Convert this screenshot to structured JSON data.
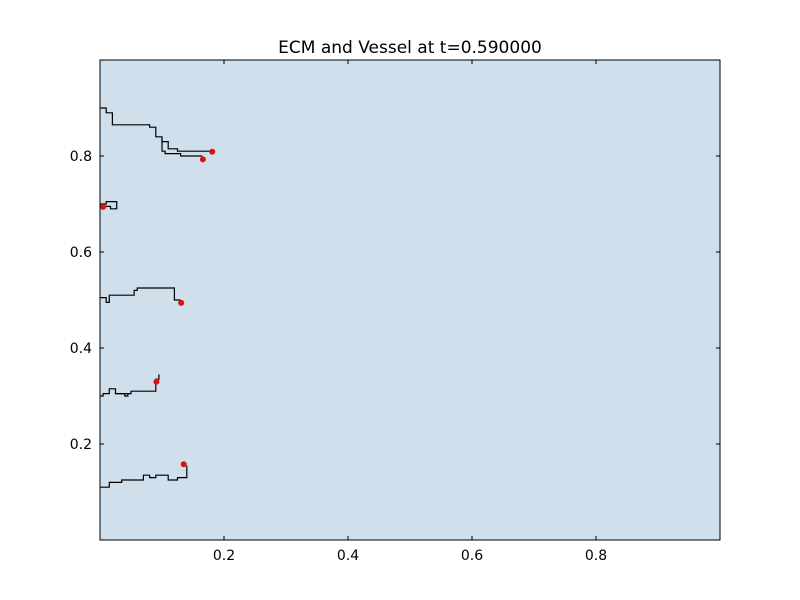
{
  "chart_data": {
    "type": "line",
    "title": "ECM and Vessel at t=0.590000",
    "xlabel": "",
    "ylabel": "",
    "xlim": [
      0.0,
      1.0
    ],
    "ylim": [
      0.0,
      1.0
    ],
    "x_ticks": [
      {
        "value": 0.2,
        "label": "0.2"
      },
      {
        "value": 0.4,
        "label": "0.4"
      },
      {
        "value": 0.6,
        "label": "0.6"
      },
      {
        "value": 0.8,
        "label": "0.8"
      }
    ],
    "y_ticks": [
      {
        "value": 0.2,
        "label": "0.2"
      },
      {
        "value": 0.4,
        "label": "0.4"
      },
      {
        "value": 0.6,
        "label": "0.6"
      },
      {
        "value": 0.8,
        "label": "0.8"
      }
    ],
    "grid": false,
    "background_color": "#cfdfec",
    "vessel_color": "#000000",
    "tip_color": "#e01010",
    "vessels": [
      {
        "points": [
          [
            0.0,
            0.9
          ],
          [
            0.01,
            0.9
          ],
          [
            0.01,
            0.89
          ],
          [
            0.02,
            0.89
          ],
          [
            0.02,
            0.865
          ],
          [
            0.08,
            0.865
          ],
          [
            0.08,
            0.86
          ],
          [
            0.09,
            0.86
          ],
          [
            0.09,
            0.84
          ],
          [
            0.1,
            0.84
          ],
          [
            0.1,
            0.83
          ],
          [
            0.11,
            0.83
          ],
          [
            0.11,
            0.815
          ],
          [
            0.125,
            0.815
          ],
          [
            0.125,
            0.81
          ],
          [
            0.18,
            0.81
          ]
        ],
        "tip": [
          0.181,
          0.809
        ]
      },
      {
        "points": [
          [
            0.1,
            0.835
          ],
          [
            0.1,
            0.81
          ],
          [
            0.105,
            0.81
          ],
          [
            0.105,
            0.805
          ],
          [
            0.13,
            0.805
          ],
          [
            0.13,
            0.8
          ],
          [
            0.165,
            0.8
          ]
        ],
        "tip": [
          0.166,
          0.793
        ]
      },
      {
        "points": [
          [
            0.0,
            0.7
          ],
          [
            0.01,
            0.7
          ],
          [
            0.01,
            0.705
          ],
          [
            0.027,
            0.705
          ],
          [
            0.027,
            0.69
          ],
          [
            0.017,
            0.69
          ],
          [
            0.017,
            0.695
          ],
          [
            0.0,
            0.695
          ]
        ],
        "tip": [
          0.005,
          0.694
        ]
      },
      {
        "points": [
          [
            0.0,
            0.505
          ],
          [
            0.01,
            0.505
          ],
          [
            0.01,
            0.495
          ],
          [
            0.015,
            0.495
          ],
          [
            0.015,
            0.51
          ],
          [
            0.055,
            0.51
          ],
          [
            0.055,
            0.515
          ],
          [
            0.055,
            0.52
          ],
          [
            0.06,
            0.52
          ],
          [
            0.06,
            0.525
          ],
          [
            0.12,
            0.525
          ],
          [
            0.12,
            0.5
          ],
          [
            0.13,
            0.5
          ]
        ],
        "tip": [
          0.131,
          0.494
        ]
      },
      {
        "points": [
          [
            0.0,
            0.3
          ],
          [
            0.005,
            0.3
          ],
          [
            0.005,
            0.305
          ],
          [
            0.015,
            0.305
          ],
          [
            0.015,
            0.315
          ],
          [
            0.025,
            0.315
          ],
          [
            0.025,
            0.305
          ],
          [
            0.05,
            0.305
          ],
          [
            0.05,
            0.31
          ],
          [
            0.09,
            0.31
          ],
          [
            0.09,
            0.335
          ],
          [
            0.095,
            0.335
          ],
          [
            0.095,
            0.345
          ]
        ],
        "tip": [
          0.091,
          0.33
        ]
      },
      {
        "points": [
          [
            0.025,
            0.31
          ],
          [
            0.025,
            0.305
          ],
          [
            0.04,
            0.305
          ],
          [
            0.04,
            0.3
          ],
          [
            0.045,
            0.3
          ],
          [
            0.045,
            0.305
          ]
        ],
        "tip": null
      },
      {
        "points": [
          [
            0.0,
            0.11
          ],
          [
            0.015,
            0.11
          ],
          [
            0.015,
            0.12
          ],
          [
            0.035,
            0.12
          ],
          [
            0.035,
            0.125
          ],
          [
            0.07,
            0.125
          ],
          [
            0.07,
            0.135
          ],
          [
            0.08,
            0.135
          ],
          [
            0.08,
            0.13
          ],
          [
            0.09,
            0.13
          ],
          [
            0.09,
            0.135
          ],
          [
            0.11,
            0.135
          ],
          [
            0.11,
            0.125
          ],
          [
            0.125,
            0.125
          ],
          [
            0.125,
            0.13
          ],
          [
            0.14,
            0.13
          ],
          [
            0.14,
            0.155
          ]
        ],
        "tip": [
          0.135,
          0.158
        ]
      }
    ]
  }
}
